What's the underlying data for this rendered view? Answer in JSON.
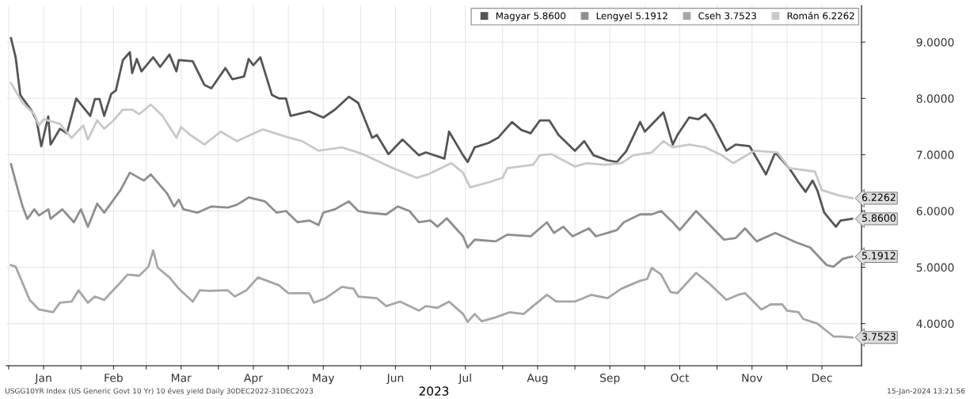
{
  "chart_data": {
    "type": "line",
    "xlabel": "2023",
    "series": [
      {
        "name": "Magyar 5.8600",
        "color": "#555555",
        "x": [
          "2023-01-02",
          "2023-01-04",
          "2023-01-06",
          "2023-01-11",
          "2023-01-13",
          "2023-01-15",
          "2023-01-18",
          "2023-01-19",
          "2023-01-23",
          "2023-01-26",
          "2023-01-30",
          "2023-02-05",
          "2023-02-07",
          "2023-02-09",
          "2023-02-11",
          "2023-02-14",
          "2023-02-16",
          "2023-02-19",
          "2023-02-22",
          "2023-02-23",
          "2023-02-25",
          "2023-02-27",
          "2023-03-04",
          "2023-03-07",
          "2023-03-11",
          "2023-03-14",
          "2023-03-15",
          "2023-03-21",
          "2023-03-26",
          "2023-03-29",
          "2023-04-04",
          "2023-04-07",
          "2023-04-12",
          "2023-04-14",
          "2023-04-16",
          "2023-04-19",
          "2023-04-24",
          "2023-04-27",
          "2023-04-30",
          "2023-05-02",
          "2023-05-10",
          "2023-05-16",
          "2023-05-21",
          "2023-05-27",
          "2023-05-31",
          "2023-06-06",
          "2023-06-08",
          "2023-06-13",
          "2023-06-19",
          "2023-06-26",
          "2023-06-29",
          "2023-07-07",
          "2023-07-09",
          "2023-07-15",
          "2023-07-17",
          "2023-07-20",
          "2023-07-26",
          "2023-07-30",
          "2023-08-05",
          "2023-08-09",
          "2023-08-13",
          "2023-08-17",
          "2023-08-21",
          "2023-08-25",
          "2023-09-01",
          "2023-09-05",
          "2023-09-09",
          "2023-09-15",
          "2023-09-19",
          "2023-09-23",
          "2023-09-29",
          "2023-10-01",
          "2023-10-09",
          "2023-10-13",
          "2023-10-15",
          "2023-10-20",
          "2023-10-24",
          "2023-10-27",
          "2023-10-30",
          "2023-11-05",
          "2023-11-09",
          "2023-11-15",
          "2023-11-22",
          "2023-11-26",
          "2023-12-02",
          "2023-12-06",
          "2023-12-09",
          "2023-12-12",
          "2023-12-14",
          "2023-12-17",
          "2023-12-22",
          "2023-12-24",
          "2023-12-29"
        ],
        "values": [
          9.07,
          8.73,
          8.06,
          7.77,
          7.61,
          7.15,
          7.68,
          7.18,
          7.46,
          7.38,
          8.0,
          7.69,
          7.99,
          7.99,
          7.69,
          8.08,
          8.14,
          8.68,
          8.82,
          8.45,
          8.7,
          8.48,
          8.73,
          8.56,
          8.78,
          8.48,
          8.68,
          8.66,
          8.24,
          8.18,
          8.54,
          8.34,
          8.39,
          8.7,
          8.59,
          8.73,
          8.06,
          8.0,
          8.0,
          7.69,
          7.77,
          7.66,
          7.8,
          8.03,
          7.92,
          7.3,
          7.35,
          7.01,
          7.27,
          6.99,
          7.04,
          6.93,
          7.41,
          6.99,
          6.87,
          7.13,
          7.21,
          7.3,
          7.58,
          7.44,
          7.38,
          7.61,
          7.61,
          7.35,
          7.07,
          7.24,
          6.99,
          6.9,
          6.87,
          7.06,
          7.58,
          7.41,
          7.75,
          7.18,
          7.35,
          7.66,
          7.63,
          7.72,
          7.55,
          7.07,
          7.18,
          7.15,
          6.65,
          7.04,
          6.76,
          6.51,
          6.34,
          6.54,
          6.37,
          5.97,
          5.72,
          5.83,
          5.86
        ]
      },
      {
        "name": "Lengyel 5.1912",
        "color": "#8e8e8e",
        "x": [
          "2023-01-02",
          "2023-01-05",
          "2023-01-07",
          "2023-01-09",
          "2023-01-12",
          "2023-01-14",
          "2023-01-18",
          "2023-01-19",
          "2023-01-24",
          "2023-01-29",
          "2023-02-01",
          "2023-02-04",
          "2023-02-08",
          "2023-02-11",
          "2023-02-18",
          "2023-02-22",
          "2023-02-28",
          "2023-03-03",
          "2023-03-10",
          "2023-03-13",
          "2023-03-15",
          "2023-03-17",
          "2023-03-23",
          "2023-03-29",
          "2023-04-05",
          "2023-04-09",
          "2023-04-14",
          "2023-04-21",
          "2023-04-26",
          "2023-04-30",
          "2023-05-05",
          "2023-05-10",
          "2023-05-14",
          "2023-05-16",
          "2023-05-21",
          "2023-05-27",
          "2023-05-31",
          "2023-06-04",
          "2023-06-12",
          "2023-06-17",
          "2023-06-22",
          "2023-06-26",
          "2023-07-01",
          "2023-07-04",
          "2023-07-08",
          "2023-07-15",
          "2023-07-17",
          "2023-07-20",
          "2023-07-29",
          "2023-08-03",
          "2023-08-13",
          "2023-08-20",
          "2023-08-23",
          "2023-08-27",
          "2023-08-31",
          "2023-09-07",
          "2023-09-10",
          "2023-09-19",
          "2023-09-22",
          "2023-09-29",
          "2023-10-04",
          "2023-10-08",
          "2023-10-13",
          "2023-10-16",
          "2023-10-23",
          "2023-11-04",
          "2023-11-09",
          "2023-11-13",
          "2023-11-18",
          "2023-11-26",
          "2023-12-05",
          "2023-12-11",
          "2023-12-18",
          "2023-12-21",
          "2023-12-25",
          "2023-12-29"
        ],
        "values": [
          6.83,
          6.37,
          6.08,
          5.86,
          6.03,
          5.92,
          6.03,
          5.86,
          6.03,
          5.8,
          6.03,
          5.72,
          6.13,
          5.97,
          6.37,
          6.68,
          6.54,
          6.65,
          6.31,
          6.08,
          6.2,
          6.03,
          5.97,
          6.08,
          6.06,
          6.11,
          6.24,
          6.17,
          5.97,
          6.0,
          5.8,
          5.83,
          5.75,
          5.97,
          6.03,
          6.17,
          6.0,
          5.97,
          5.94,
          6.08,
          6.0,
          5.8,
          5.83,
          5.72,
          5.87,
          5.55,
          5.35,
          5.49,
          5.46,
          5.58,
          5.55,
          5.8,
          5.61,
          5.72,
          5.55,
          5.69,
          5.55,
          5.66,
          5.8,
          5.94,
          5.94,
          6.0,
          5.8,
          5.66,
          6.0,
          5.49,
          5.52,
          5.69,
          5.46,
          5.61,
          5.44,
          5.35,
          5.04,
          5.01,
          5.15,
          5.1912
        ]
      },
      {
        "name": "Cseh 3.7523",
        "color": "#a6a6a6",
        "x": [
          "2023-01-02",
          "2023-01-04",
          "2023-01-10",
          "2023-01-14",
          "2023-01-20",
          "2023-01-23",
          "2023-01-28",
          "2023-01-31",
          "2023-02-04",
          "2023-02-07",
          "2023-02-11",
          "2023-02-18",
          "2023-02-21",
          "2023-02-26",
          "2023-03-02",
          "2023-03-04",
          "2023-03-06",
          "2023-03-11",
          "2023-03-15",
          "2023-03-21",
          "2023-03-24",
          "2023-03-28",
          "2023-04-05",
          "2023-04-08",
          "2023-04-13",
          "2023-04-18",
          "2023-04-27",
          "2023-05-01",
          "2023-05-10",
          "2023-05-12",
          "2023-05-17",
          "2023-05-24",
          "2023-05-29",
          "2023-05-31",
          "2023-06-08",
          "2023-06-12",
          "2023-06-18",
          "2023-06-26",
          "2023-06-29",
          "2023-07-04",
          "2023-07-09",
          "2023-07-15",
          "2023-07-17",
          "2023-07-20",
          "2023-07-23",
          "2023-07-29",
          "2023-08-04",
          "2023-08-10",
          "2023-08-14",
          "2023-08-20",
          "2023-08-24",
          "2023-09-01",
          "2023-09-08",
          "2023-09-15",
          "2023-09-21",
          "2023-09-29",
          "2023-10-02",
          "2023-10-04",
          "2023-10-08",
          "2023-10-12",
          "2023-10-15",
          "2023-10-23",
          "2023-10-29",
          "2023-11-05",
          "2023-11-10",
          "2023-11-13",
          "2023-11-20",
          "2023-11-24",
          "2023-11-29",
          "2023-12-01",
          "2023-12-06",
          "2023-12-08",
          "2023-12-14",
          "2023-12-21",
          "2023-12-24",
          "2023-12-29"
        ],
        "values": [
          5.04,
          5.01,
          4.42,
          4.25,
          4.2,
          4.37,
          4.39,
          4.59,
          4.37,
          4.48,
          4.42,
          4.73,
          4.87,
          4.85,
          5.01,
          5.3,
          4.99,
          4.82,
          4.62,
          4.39,
          4.59,
          4.58,
          4.59,
          4.48,
          4.59,
          4.82,
          4.68,
          4.54,
          4.54,
          4.37,
          4.45,
          4.65,
          4.62,
          4.48,
          4.45,
          4.31,
          4.39,
          4.23,
          4.31,
          4.28,
          4.39,
          4.17,
          4.03,
          4.17,
          4.04,
          4.11,
          4.2,
          4.17,
          4.31,
          4.51,
          4.39,
          4.39,
          4.51,
          4.45,
          4.62,
          4.76,
          4.79,
          4.99,
          4.87,
          4.56,
          4.54,
          4.9,
          4.7,
          4.42,
          4.51,
          4.54,
          4.25,
          4.34,
          4.34,
          4.23,
          4.2,
          4.08,
          4.0,
          3.77,
          3.77,
          3.7523
        ]
      },
      {
        "name": "Román 6.2262",
        "color": "#c8c8c8",
        "x": [
          "2023-01-02",
          "2023-01-07",
          "2023-01-12",
          "2023-01-14",
          "2023-01-16",
          "2023-01-23",
          "2023-01-28",
          "2023-02-02",
          "2023-02-04",
          "2023-02-08",
          "2023-02-11",
          "2023-02-15",
          "2023-02-19",
          "2023-02-23",
          "2023-02-26",
          "2023-03-03",
          "2023-03-08",
          "2023-03-14",
          "2023-03-16",
          "2023-03-20",
          "2023-03-26",
          "2023-04-02",
          "2023-04-09",
          "2023-04-20",
          "2023-04-30",
          "2023-05-07",
          "2023-05-14",
          "2023-05-24",
          "2023-06-02",
          "2023-06-15",
          "2023-06-25",
          "2023-06-30",
          "2023-07-10",
          "2023-07-15",
          "2023-07-18",
          "2023-07-26",
          "2023-08-01",
          "2023-08-03",
          "2023-08-14",
          "2023-08-17",
          "2023-08-22",
          "2023-09-01",
          "2023-09-06",
          "2023-09-14",
          "2023-09-21",
          "2023-09-26",
          "2023-10-04",
          "2023-10-09",
          "2023-10-13",
          "2023-10-20",
          "2023-10-27",
          "2023-11-03",
          "2023-11-08",
          "2023-11-17",
          "2023-11-27",
          "2023-12-02",
          "2023-12-13",
          "2023-12-16",
          "2023-12-23",
          "2023-12-29"
        ],
        "values": [
          8.27,
          7.92,
          7.72,
          7.52,
          7.63,
          7.55,
          7.3,
          7.52,
          7.27,
          7.61,
          7.46,
          7.61,
          7.8,
          7.8,
          7.72,
          7.89,
          7.69,
          7.3,
          7.49,
          7.35,
          7.18,
          7.41,
          7.24,
          7.45,
          7.32,
          7.24,
          7.07,
          7.13,
          7.01,
          6.76,
          6.59,
          6.65,
          6.85,
          6.68,
          6.42,
          6.51,
          6.59,
          6.76,
          6.82,
          6.99,
          7.01,
          6.79,
          6.85,
          6.82,
          6.85,
          6.99,
          7.04,
          7.24,
          7.13,
          7.18,
          7.13,
          6.99,
          6.85,
          7.07,
          7.04,
          6.76,
          6.7,
          6.37,
          6.28,
          6.2262
        ]
      }
    ],
    "xlim": [
      "2022-12-31",
      "2024-01-02"
    ],
    "xticks": [
      {
        "value": "2023-01-01",
        "label": null
      },
      {
        "value": "2023-01-16",
        "label": "Jan"
      },
      {
        "value": "2023-02-01",
        "label": null
      },
      {
        "value": "2023-02-15",
        "label": "Feb"
      },
      {
        "value": "2023-03-01",
        "label": null
      },
      {
        "value": "2023-03-16",
        "label": "Mar"
      },
      {
        "value": "2023-04-01",
        "label": null
      },
      {
        "value": "2023-04-16",
        "label": "Apr"
      },
      {
        "value": "2023-05-01",
        "label": null
      },
      {
        "value": "2023-05-16",
        "label": "May"
      },
      {
        "value": "2023-06-01",
        "label": null
      },
      {
        "value": "2023-06-16",
        "label": "Jun"
      },
      {
        "value": "2023-07-01",
        "label": null
      },
      {
        "value": "2023-07-16",
        "label": "Jul"
      },
      {
        "value": "2023-08-01",
        "label": null
      },
      {
        "value": "2023-08-16",
        "label": "Aug"
      },
      {
        "value": "2023-09-01",
        "label": null
      },
      {
        "value": "2023-09-16",
        "label": "Sep"
      },
      {
        "value": "2023-10-01",
        "label": null
      },
      {
        "value": "2023-10-16",
        "label": "Oct"
      },
      {
        "value": "2023-11-01",
        "label": null
      },
      {
        "value": "2023-11-16",
        "label": "Nov"
      },
      {
        "value": "2023-12-01",
        "label": null
      },
      {
        "value": "2023-12-16",
        "label": "Dec"
      }
    ],
    "ylim": [
      3.25,
      9.65
    ],
    "yticks": [
      {
        "value": 4,
        "label": "4.0000"
      },
      {
        "value": 5,
        "label": "5.0000"
      },
      {
        "value": 6,
        "label": "6.0000"
      },
      {
        "value": 7,
        "label": "7.0000"
      },
      {
        "value": 8,
        "label": "8.0000"
      },
      {
        "value": 9,
        "label": "9.0000"
      }
    ],
    "grid": true,
    "legend": "top right",
    "marker": "none",
    "line_style": "solid",
    "annotations": [
      {
        "text": "6.2262",
        "x": "2023-12-29",
        "y": 6.2262
      },
      {
        "text": "5.8600",
        "x": "2023-12-29",
        "y": 5.86
      },
      {
        "text": "5.1912",
        "x": "2023-12-29",
        "y": 5.1912
      },
      {
        "text": "3.7523",
        "x": "2023-12-29",
        "y": 3.7523
      },
      "USGG10YR Index (US Generic Govt 10 Yr) 10 éves yield Daily 30DEC2022-31DEC2023",
      "15-Jan-2024 13:21:56"
    ]
  }
}
